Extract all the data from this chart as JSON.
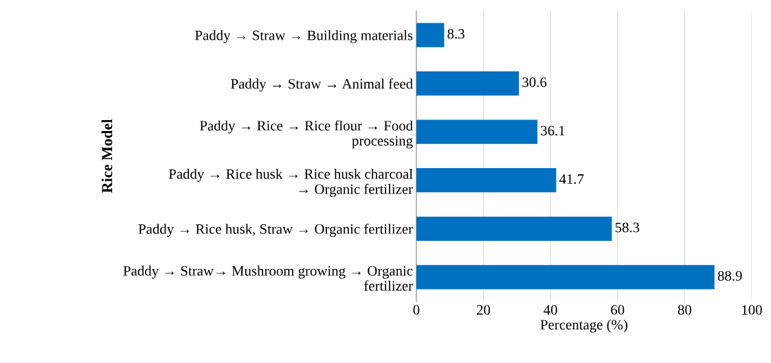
{
  "chart_data": {
    "type": "bar",
    "orientation": "horizontal",
    "categories": [
      "Paddy → Straw → Building materials",
      "Paddy → Straw → Animal feed",
      "Paddy → Rice → Rice flour → Food\nprocessing",
      "Paddy → Rice husk → Rice husk charcoal\n→ Organic fertilizer",
      "Paddy → Rice husk, Straw → Organic fertilizer",
      "Paddy → Straw→ Mushroom growing → Organic\nfertilizer"
    ],
    "values": [
      8.3,
      30.6,
      36.1,
      41.7,
      58.3,
      88.9
    ],
    "color": "#0070c0",
    "xlim": [
      0,
      100
    ],
    "xticks": [
      0,
      20,
      40,
      60,
      80,
      100
    ],
    "xlabel": "Percentage (%)",
    "ylabel": "Rice Model",
    "grid": "x",
    "data_labels": true
  }
}
